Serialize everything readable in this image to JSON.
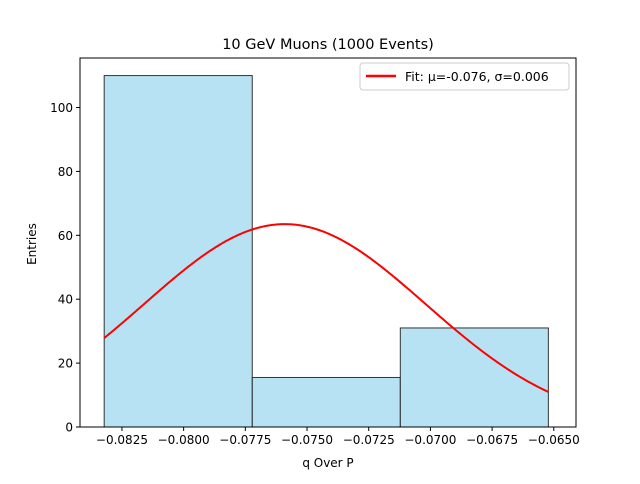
{
  "chart_data": {
    "type": "bar",
    "title": "10 GeV Muons (1000 Events)",
    "xlabel": "q Over P",
    "ylabel": "Entries",
    "bins": [
      {
        "x0": -0.08322,
        "x1": -0.07722,
        "value": 110
      },
      {
        "x0": -0.07722,
        "x1": -0.07122,
        "value": 15.5
      },
      {
        "x0": -0.07122,
        "x1": -0.06522,
        "value": 31
      }
    ],
    "xlim": [
      -0.0842,
      -0.0641
    ],
    "ylim": [
      0,
      115.5
    ],
    "xticks": [
      -0.0825,
      -0.08,
      -0.0775,
      -0.075,
      -0.0725,
      -0.07,
      -0.0675,
      -0.065
    ],
    "xtick_labels": [
      "−0.0825",
      "−0.0800",
      "−0.0775",
      "−0.0750",
      "−0.0725",
      "−0.0700",
      "−0.0675",
      "−0.0650"
    ],
    "yticks": [
      0,
      20,
      40,
      60,
      80,
      100
    ],
    "ytick_labels": [
      "0",
      "20",
      "40",
      "60",
      "80",
      "100"
    ],
    "fit": {
      "label": "Fit: μ=-0.076, σ=0.006",
      "mu": -0.0759,
      "sigma": 0.0057,
      "amplitude": 63.5,
      "x_range": [
        -0.08322,
        -0.06522
      ]
    },
    "legend": "top-right",
    "grid": false,
    "colors": {
      "bar_fill": "#87ceeb",
      "bar_edge": "#333333",
      "fit_line": "#ff0000"
    }
  }
}
